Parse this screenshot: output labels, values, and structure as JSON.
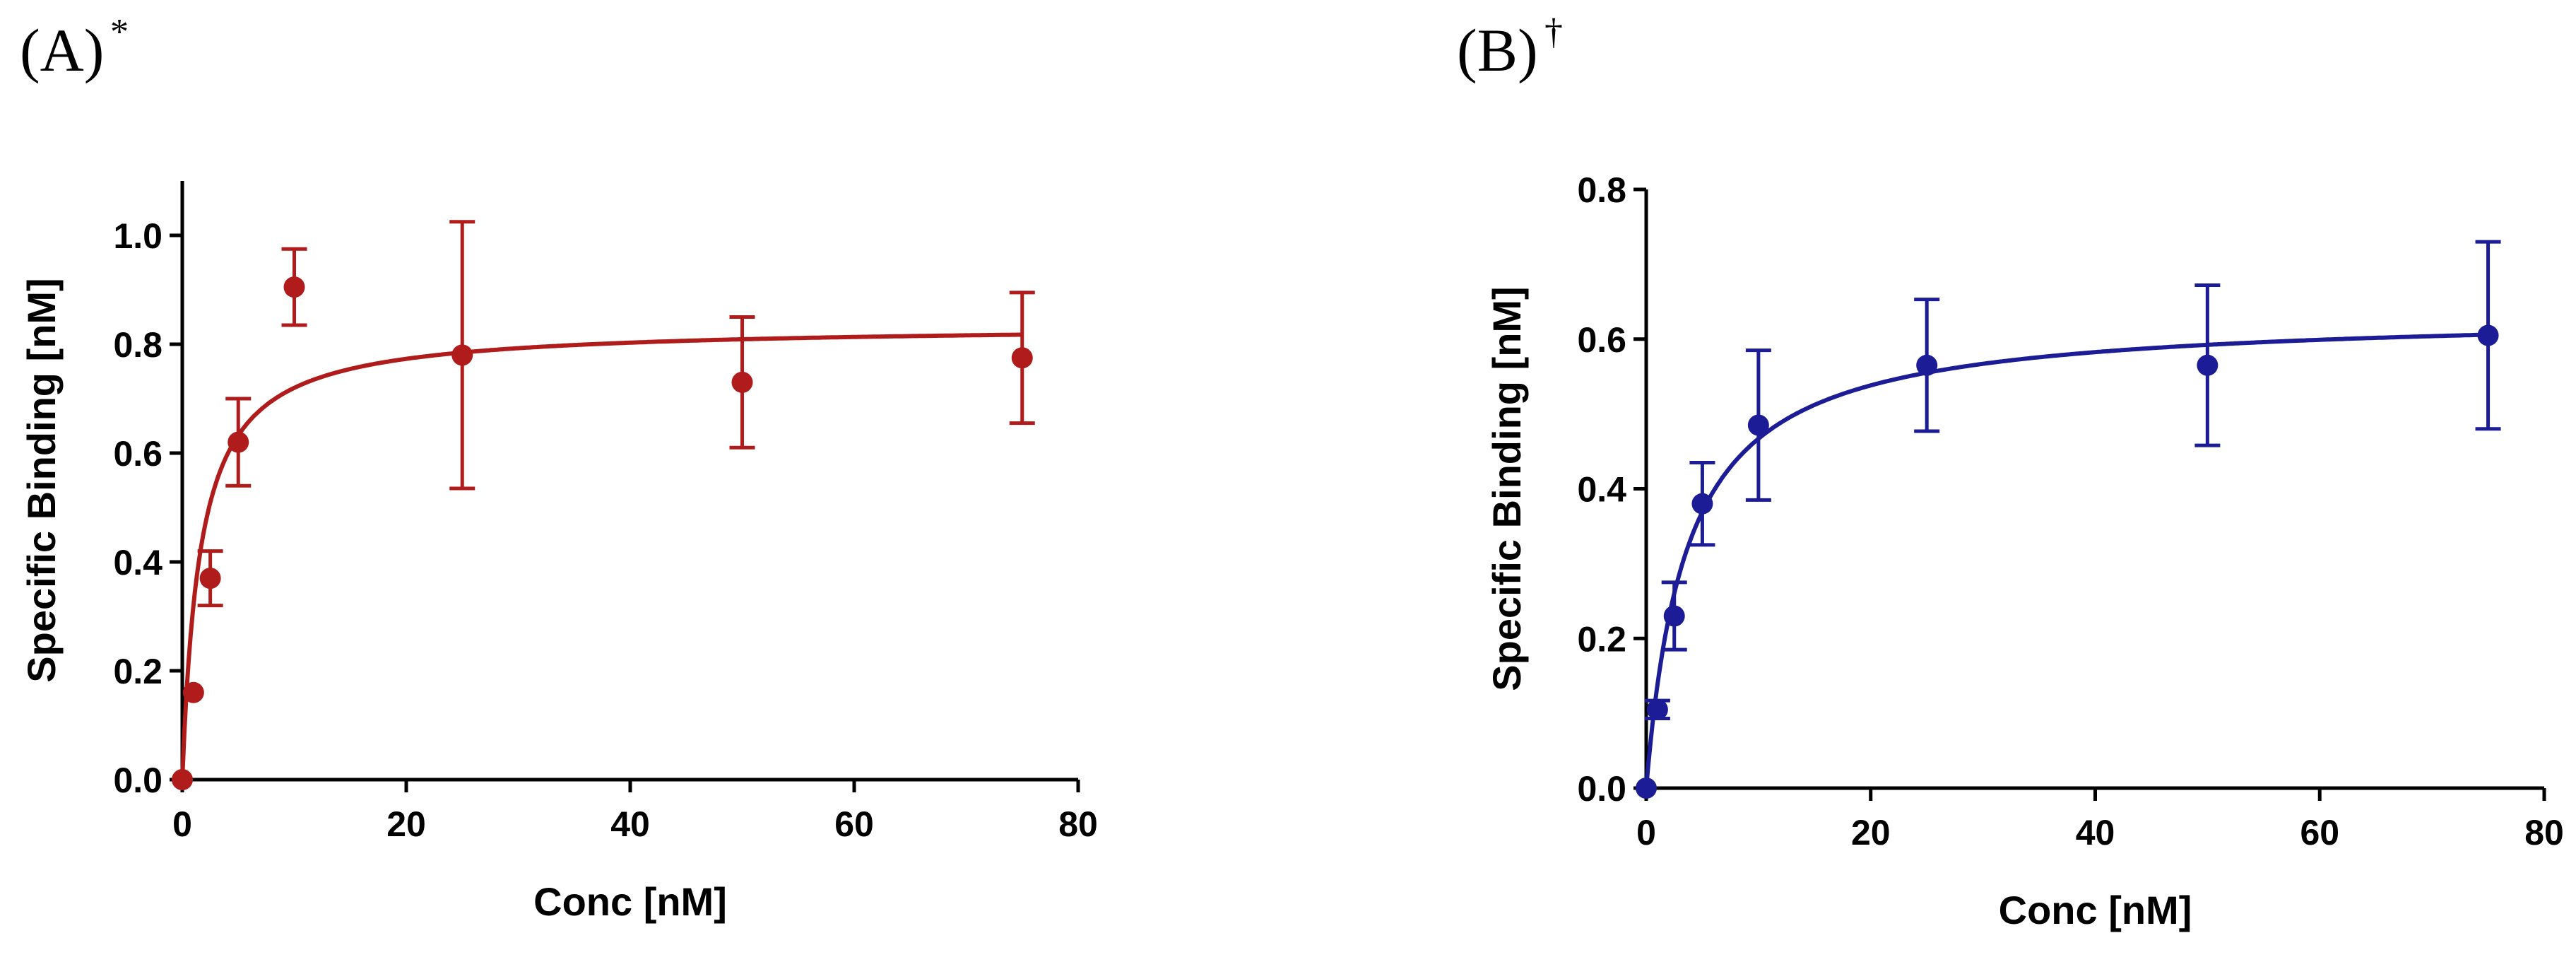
{
  "chart_data": [
    {
      "type": "scatter",
      "panel_label": "(A)",
      "panel_mark": "*",
      "xlabel": "Conc [nM]",
      "ylabel": "Specific Binding [nM]",
      "xlim": [
        0,
        80
      ],
      "ylim": [
        0,
        1.1
      ],
      "xticks": [
        "0",
        "20",
        "40",
        "60",
        "80"
      ],
      "xtick_values": [
        0,
        20,
        40,
        60,
        80
      ],
      "yticks": [
        "0.0",
        "0.2",
        "0.4",
        "0.6",
        "0.8",
        "1.0"
      ],
      "ytick_values": [
        0,
        0.2,
        0.4,
        0.6,
        0.8,
        1.0
      ],
      "grid": false,
      "color": "#b01c1c",
      "series": [
        {
          "x": [
            0,
            1,
            2.5,
            5,
            10,
            25,
            50,
            75
          ],
          "y": [
            0,
            0.16,
            0.37,
            0.62,
            0.905,
            0.78,
            0.73,
            0.775
          ],
          "err": [
            0,
            0,
            0.05,
            0.08,
            0.07,
            0.245,
            0.12,
            0.12
          ]
        }
      ],
      "fit": {
        "model": "one-site saturation",
        "bmax": 0.835,
        "kd": 1.6
      }
    },
    {
      "type": "scatter",
      "panel_label": "(B)",
      "panel_mark": "†",
      "xlabel": "Conc [nM]",
      "ylabel": "Specific Binding [nM]",
      "xlim": [
        0,
        80
      ],
      "ylim": [
        0,
        0.8
      ],
      "xticks": [
        "0",
        "20",
        "40",
        "60",
        "80"
      ],
      "xtick_values": [
        0,
        20,
        40,
        60,
        80
      ],
      "yticks": [
        "0.0",
        "0.2",
        "0.4",
        "0.6",
        "0.8"
      ],
      "ytick_values": [
        0,
        0.2,
        0.4,
        0.6,
        0.8
      ],
      "grid": false,
      "color": "#1c1c96",
      "series": [
        {
          "x": [
            0,
            1,
            2.5,
            5,
            10,
            25,
            50,
            75
          ],
          "y": [
            0,
            0.105,
            0.23,
            0.38,
            0.485,
            0.565,
            0.565,
            0.605
          ],
          "err": [
            0,
            0.012,
            0.045,
            0.055,
            0.1,
            0.088,
            0.107,
            0.125
          ]
        }
      ],
      "fit": {
        "model": "one-site saturation",
        "bmax": 0.635,
        "kd": 3.6
      }
    }
  ]
}
